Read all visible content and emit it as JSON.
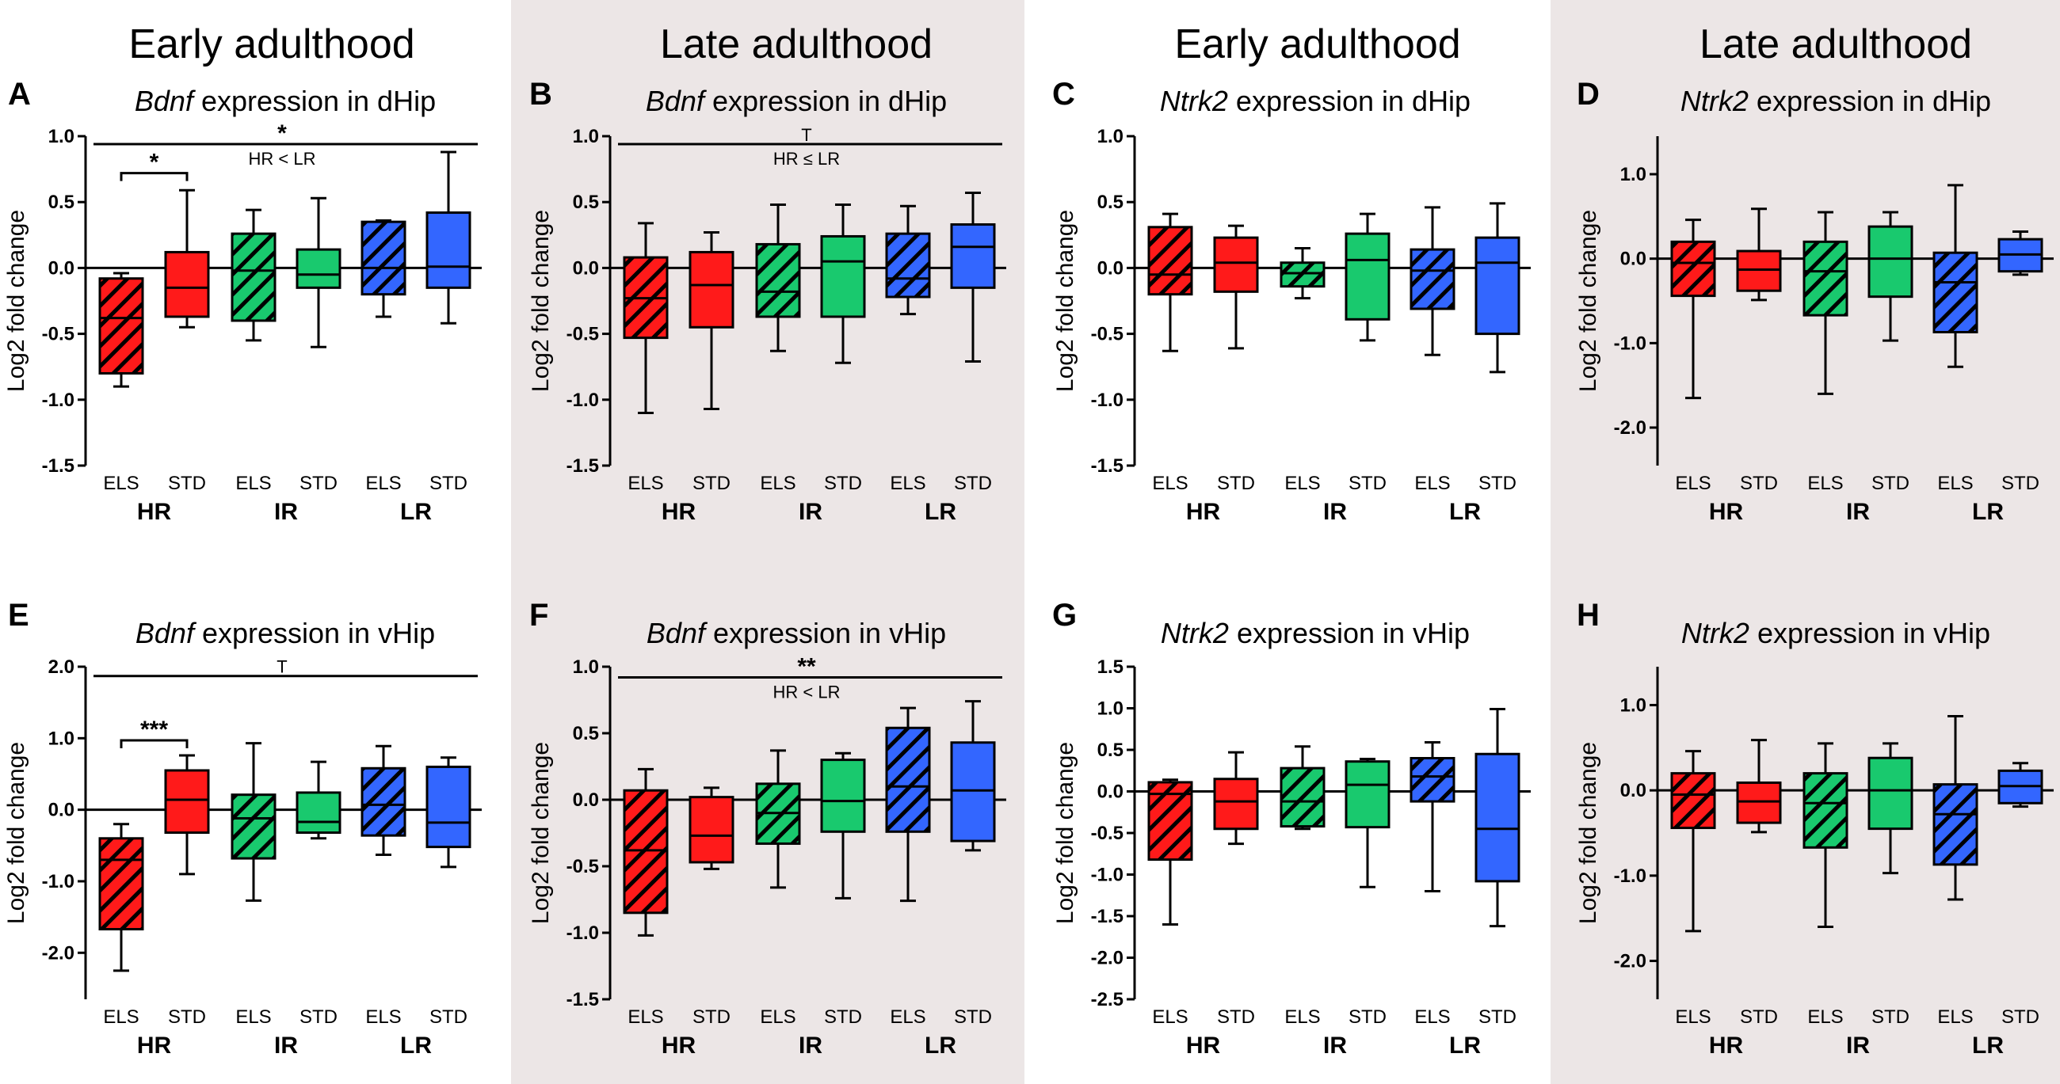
{
  "colors": {
    "red": "#ff1a1a",
    "green": "#19c96e",
    "blue": "#3366ff",
    "shaded_bg": "#ece6e6"
  },
  "headers": [
    "Early adulthood",
    "Late adulthood",
    "Early adulthood",
    "Late adulthood"
  ],
  "categories": [
    "ELS",
    "STD",
    "ELS",
    "STD",
    "ELS",
    "STD"
  ],
  "groups": [
    "HR",
    "IR",
    "LR"
  ],
  "ylabel": "Log2 fold change",
  "chart_data": [
    {
      "panel": "A",
      "type": "box",
      "gene": "Bdnf",
      "region": "dHip",
      "yticks": [
        "1.0",
        "0.5",
        "0.0",
        "-0.5",
        "-1.0",
        "-1.5"
      ],
      "ylim": [
        -1.5,
        1.0
      ],
      "boxes": [
        {
          "name": "HR ELS",
          "min": -0.9,
          "q1": -0.8,
          "median": -0.38,
          "q3": -0.08,
          "max": -0.04
        },
        {
          "name": "HR STD",
          "min": -0.45,
          "q1": -0.37,
          "median": -0.15,
          "q3": 0.12,
          "max": 0.59
        },
        {
          "name": "IR ELS",
          "min": -0.55,
          "q1": -0.4,
          "median": -0.02,
          "q3": 0.26,
          "max": 0.44
        },
        {
          "name": "IR STD",
          "min": -0.6,
          "q1": -0.15,
          "median": -0.05,
          "q3": 0.14,
          "max": 0.53
        },
        {
          "name": "LR ELS",
          "min": -0.37,
          "q1": -0.2,
          "median": 0.0,
          "q3": 0.35,
          "max": 0.36
        },
        {
          "name": "LR STD",
          "min": -0.42,
          "q1": -0.15,
          "median": 0.01,
          "q3": 0.42,
          "max": 0.88
        }
      ],
      "sig_top": {
        "text": "*",
        "note": "HR < LR",
        "y": 0.94
      },
      "sig_pair": {
        "text": "*",
        "from": 0,
        "to": 1,
        "y": 0.72
      }
    },
    {
      "panel": "B",
      "type": "box",
      "gene": "Bdnf",
      "region": "dHip",
      "yticks": [
        "1.0",
        "0.5",
        "0.0",
        "-0.5",
        "-1.0",
        "-1.5"
      ],
      "ylim": [
        -1.5,
        1.0
      ],
      "boxes": [
        {
          "name": "HR ELS",
          "min": -1.1,
          "q1": -0.53,
          "median": -0.23,
          "q3": 0.08,
          "max": 0.34
        },
        {
          "name": "HR STD",
          "min": -1.07,
          "q1": -0.45,
          "median": -0.13,
          "q3": 0.12,
          "max": 0.27
        },
        {
          "name": "IR ELS",
          "min": -0.63,
          "q1": -0.37,
          "median": -0.18,
          "q3": 0.18,
          "max": 0.48
        },
        {
          "name": "IR STD",
          "min": -0.72,
          "q1": -0.37,
          "median": 0.05,
          "q3": 0.24,
          "max": 0.48
        },
        {
          "name": "LR ELS",
          "min": -0.35,
          "q1": -0.22,
          "median": -0.08,
          "q3": 0.26,
          "max": 0.47
        },
        {
          "name": "LR STD",
          "min": -0.71,
          "q1": -0.15,
          "median": 0.16,
          "q3": 0.33,
          "max": 0.57
        }
      ],
      "sig_top": {
        "text": "T",
        "note": "HR ≤ LR",
        "y": 0.94
      }
    },
    {
      "panel": "C",
      "type": "box",
      "gene": "Ntrk2",
      "region": "dHip",
      "yticks": [
        "1.0",
        "0.5",
        "0.0",
        "-0.5",
        "-1.0",
        "-1.5"
      ],
      "ylim": [
        -1.5,
        1.0
      ],
      "boxes": [
        {
          "name": "HR ELS",
          "min": -0.63,
          "q1": -0.2,
          "median": -0.05,
          "q3": 0.31,
          "max": 0.41
        },
        {
          "name": "HR STD",
          "min": -0.61,
          "q1": -0.18,
          "median": 0.04,
          "q3": 0.23,
          "max": 0.32
        },
        {
          "name": "IR ELS",
          "min": -0.23,
          "q1": -0.14,
          "median": -0.04,
          "q3": 0.04,
          "max": 0.15
        },
        {
          "name": "IR STD",
          "min": -0.55,
          "q1": -0.39,
          "median": 0.06,
          "q3": 0.26,
          "max": 0.41
        },
        {
          "name": "LR ELS",
          "min": -0.66,
          "q1": -0.31,
          "median": -0.02,
          "q3": 0.14,
          "max": 0.46
        },
        {
          "name": "LR STD",
          "min": -0.79,
          "q1": -0.5,
          "median": 0.04,
          "q3": 0.23,
          "max": 0.49
        }
      ]
    },
    {
      "panel": "D",
      "type": "box",
      "gene": "Ntrk2",
      "region": "dHip",
      "yticks": [
        "1.0",
        "0.0",
        "-1.0",
        "-2.0"
      ],
      "ylim": [
        -2.45,
        1.45
      ],
      "boxes": [
        {
          "name": "HR ELS",
          "min": -1.65,
          "q1": -0.44,
          "median": -0.05,
          "q3": 0.2,
          "max": 0.46
        },
        {
          "name": "HR STD",
          "min": -0.49,
          "q1": -0.38,
          "median": -0.13,
          "q3": 0.09,
          "max": 0.59
        },
        {
          "name": "IR ELS",
          "min": -1.6,
          "q1": -0.67,
          "median": -0.15,
          "q3": 0.2,
          "max": 0.55
        },
        {
          "name": "IR STD",
          "min": -0.97,
          "q1": -0.45,
          "median": 0.0,
          "q3": 0.38,
          "max": 0.55
        },
        {
          "name": "LR ELS",
          "min": -1.28,
          "q1": -0.87,
          "median": -0.28,
          "q3": 0.07,
          "max": 0.87
        },
        {
          "name": "LR STD",
          "min": -0.19,
          "q1": -0.15,
          "median": 0.05,
          "q3": 0.23,
          "max": 0.32
        }
      ]
    },
    {
      "panel": "E",
      "type": "box",
      "gene": "Bdnf",
      "region": "vHip",
      "yticks": [
        "2.0",
        "1.0",
        "0.0",
        "-1.0",
        "-2.0"
      ],
      "ylim": [
        -2.65,
        2.0
      ],
      "boxes": [
        {
          "name": "HR ELS",
          "min": -2.25,
          "q1": -1.67,
          "median": -0.7,
          "q3": -0.4,
          "max": -0.2
        },
        {
          "name": "HR STD",
          "min": -0.9,
          "q1": -0.32,
          "median": 0.14,
          "q3": 0.55,
          "max": 0.76
        },
        {
          "name": "IR ELS",
          "min": -1.27,
          "q1": -0.68,
          "median": -0.12,
          "q3": 0.21,
          "max": 0.93
        },
        {
          "name": "IR STD",
          "min": -0.4,
          "q1": -0.32,
          "median": -0.17,
          "q3": 0.24,
          "max": 0.67
        },
        {
          "name": "LR ELS",
          "min": -0.63,
          "q1": -0.36,
          "median": 0.07,
          "q3": 0.58,
          "max": 0.89
        },
        {
          "name": "LR STD",
          "min": -0.8,
          "q1": -0.52,
          "median": -0.18,
          "q3": 0.6,
          "max": 0.73
        }
      ],
      "sig_top": {
        "text": "T",
        "note": "",
        "y": 1.87
      },
      "sig_pair": {
        "text": "***",
        "from": 0,
        "to": 1,
        "y": 0.97
      }
    },
    {
      "panel": "F",
      "type": "box",
      "gene": "Bdnf",
      "region": "vHip",
      "yticks": [
        "1.0",
        "0.5",
        "0.0",
        "-0.5",
        "-1.0",
        "-1.5"
      ],
      "ylim": [
        -1.5,
        1.0
      ],
      "boxes": [
        {
          "name": "HR ELS",
          "min": -1.02,
          "q1": -0.85,
          "median": -0.38,
          "q3": 0.07,
          "max": 0.23
        },
        {
          "name": "HR STD",
          "min": -0.52,
          "q1": -0.47,
          "median": -0.27,
          "q3": 0.02,
          "max": 0.09
        },
        {
          "name": "IR ELS",
          "min": -0.66,
          "q1": -0.33,
          "median": -0.1,
          "q3": 0.12,
          "max": 0.37
        },
        {
          "name": "IR STD",
          "min": -0.74,
          "q1": -0.24,
          "median": -0.01,
          "q3": 0.3,
          "max": 0.35
        },
        {
          "name": "LR ELS",
          "min": -0.76,
          "q1": -0.24,
          "median": 0.1,
          "q3": 0.54,
          "max": 0.69
        },
        {
          "name": "LR STD",
          "min": -0.38,
          "q1": -0.31,
          "median": 0.07,
          "q3": 0.43,
          "max": 0.74
        }
      ],
      "sig_top": {
        "text": "**",
        "note": "HR < LR",
        "y": 0.92
      }
    },
    {
      "panel": "G",
      "type": "box",
      "gene": "Ntrk2",
      "region": "vHip",
      "yticks": [
        "1.5",
        "1.0",
        "0.5",
        "0.0",
        "-0.5",
        "-1.0",
        "-1.5",
        "-2.0",
        "-2.5"
      ],
      "ylim": [
        -2.5,
        1.5
      ],
      "boxes": [
        {
          "name": "HR ELS",
          "min": -1.6,
          "q1": -0.82,
          "median": -0.03,
          "q3": 0.11,
          "max": 0.14
        },
        {
          "name": "HR STD",
          "min": -0.63,
          "q1": -0.45,
          "median": -0.12,
          "q3": 0.15,
          "max": 0.47
        },
        {
          "name": "IR ELS",
          "min": -0.45,
          "q1": -0.42,
          "median": -0.12,
          "q3": 0.28,
          "max": 0.54
        },
        {
          "name": "IR STD",
          "min": -1.15,
          "q1": -0.43,
          "median": 0.08,
          "q3": 0.36,
          "max": 0.39
        },
        {
          "name": "LR ELS",
          "min": -1.2,
          "q1": -0.12,
          "median": 0.18,
          "q3": 0.4,
          "max": 0.59
        },
        {
          "name": "LR STD",
          "min": -1.62,
          "q1": -1.08,
          "median": -0.45,
          "q3": 0.45,
          "max": 0.99
        }
      ]
    },
    {
      "panel": "H",
      "type": "box",
      "gene": "Ntrk2",
      "region": "vHip",
      "yticks": [
        "1.0",
        "0.0",
        "-1.0",
        "-2.0"
      ],
      "ylim": [
        -2.45,
        1.45
      ],
      "boxes": [
        {
          "name": "HR ELS",
          "min": -1.65,
          "q1": -0.44,
          "median": -0.05,
          "q3": 0.2,
          "max": 0.46
        },
        {
          "name": "HR STD",
          "min": -0.49,
          "q1": -0.38,
          "median": -0.13,
          "q3": 0.09,
          "max": 0.59
        },
        {
          "name": "IR ELS",
          "min": -1.6,
          "q1": -0.67,
          "median": -0.15,
          "q3": 0.2,
          "max": 0.55
        },
        {
          "name": "IR STD",
          "min": -0.97,
          "q1": -0.45,
          "median": 0.0,
          "q3": 0.38,
          "max": 0.55
        },
        {
          "name": "LR ELS",
          "min": -1.28,
          "q1": -0.87,
          "median": -0.28,
          "q3": 0.07,
          "max": 0.87
        },
        {
          "name": "LR STD",
          "min": -0.19,
          "q1": -0.15,
          "median": 0.05,
          "q3": 0.23,
          "max": 0.32
        }
      ]
    }
  ]
}
